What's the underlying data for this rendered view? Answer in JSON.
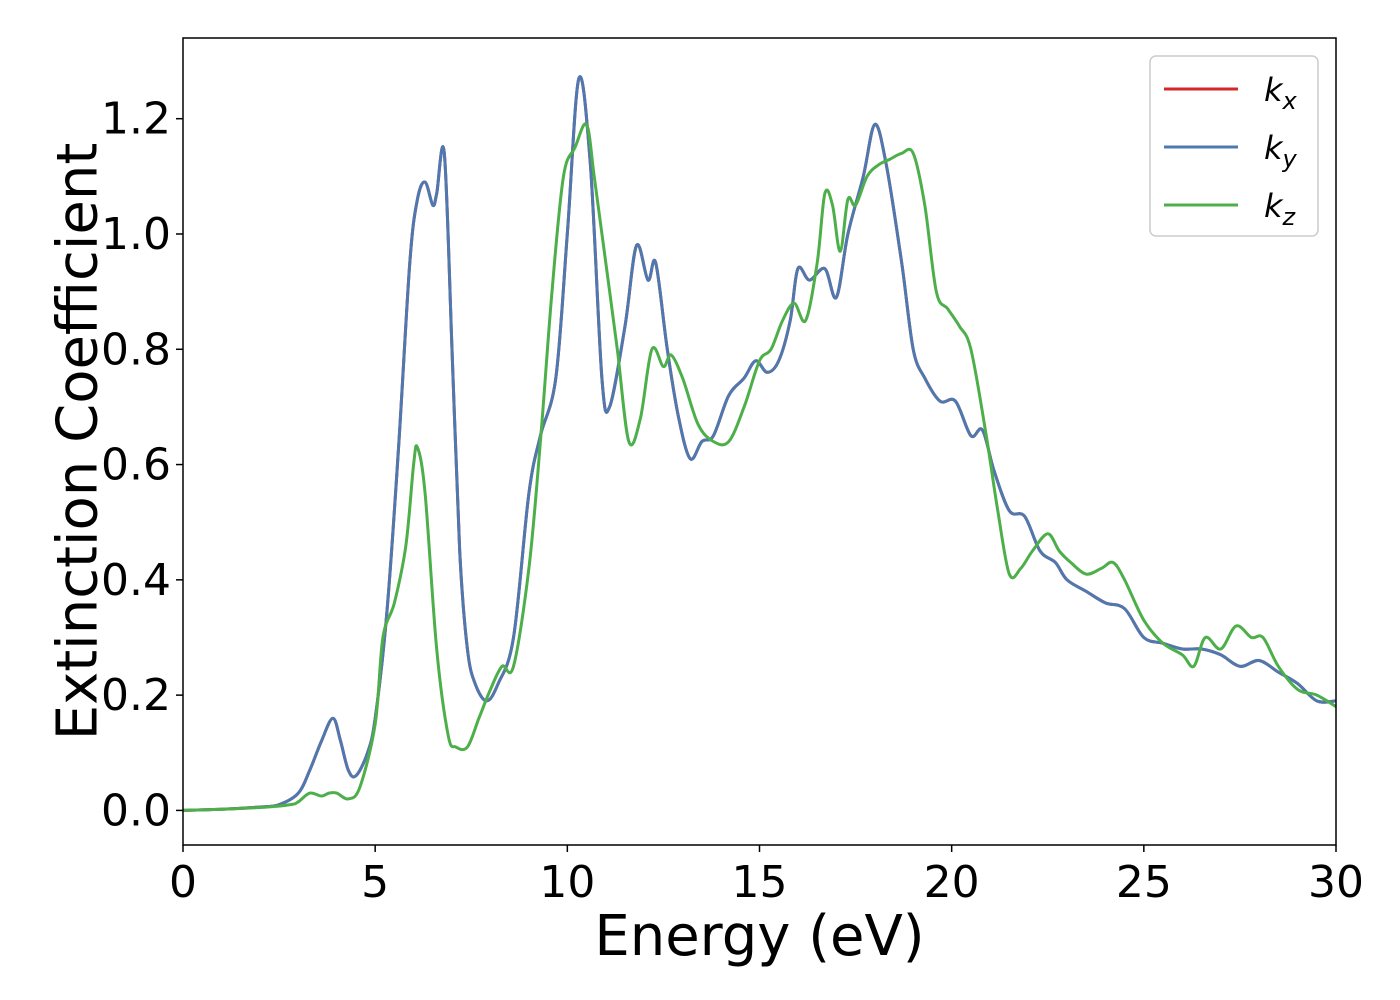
{
  "chart_data": {
    "type": "line",
    "title": "",
    "xlabel": "Energy (eV)",
    "ylabel": "Extinction Coefficient",
    "xlim": [
      0,
      30
    ],
    "ylim": [
      -0.06,
      1.34
    ],
    "xticks": [
      0,
      5,
      10,
      15,
      20,
      25,
      30
    ],
    "yticks": [
      0.0,
      0.2,
      0.4,
      0.6,
      0.8,
      1.0,
      1.2
    ],
    "grid": false,
    "legend_position": "top-right",
    "series": [
      {
        "name": "k",
        "subscript": "x",
        "color": "#d62728",
        "x": [
          0,
          1,
          2,
          2.5,
          3,
          3.3,
          3.6,
          3.9,
          4.1,
          4.3,
          4.5,
          4.8,
          5.0,
          5.3,
          5.6,
          5.9,
          6.1,
          6.3,
          6.5,
          6.6,
          6.8,
          7.0,
          7.2,
          7.4,
          7.6,
          7.9,
          8.2,
          8.6,
          9.0,
          9.3,
          9.7,
          10.0,
          10.3,
          10.6,
          10.9,
          11.1,
          11.5,
          11.8,
          12.1,
          12.3,
          12.6,
          12.9,
          13.2,
          13.5,
          13.8,
          14.2,
          14.6,
          14.9,
          15.2,
          15.5,
          15.8,
          16.0,
          16.3,
          16.7,
          17.0,
          17.3,
          17.7,
          18.0,
          18.3,
          18.7,
          19.0,
          19.3,
          19.7,
          20.1,
          20.5,
          20.8,
          21.1,
          21.5,
          21.9,
          22.3,
          22.7,
          23.0,
          23.5,
          24.0,
          24.5,
          25.0,
          25.5,
          26.0,
          26.5,
          27.0,
          27.5,
          28.0,
          28.5,
          29.0,
          29.5,
          30.0
        ],
        "y": [
          0,
          0.002,
          0.006,
          0.01,
          0.03,
          0.07,
          0.12,
          0.16,
          0.12,
          0.07,
          0.06,
          0.1,
          0.16,
          0.34,
          0.62,
          0.95,
          1.06,
          1.09,
          1.05,
          1.07,
          1.14,
          0.8,
          0.45,
          0.28,
          0.22,
          0.19,
          0.22,
          0.3,
          0.55,
          0.65,
          0.75,
          1.0,
          1.27,
          1.12,
          0.75,
          0.7,
          0.84,
          0.98,
          0.92,
          0.95,
          0.8,
          0.68,
          0.61,
          0.64,
          0.65,
          0.72,
          0.75,
          0.78,
          0.76,
          0.78,
          0.85,
          0.94,
          0.92,
          0.94,
          0.89,
          1.0,
          1.1,
          1.19,
          1.12,
          0.95,
          0.8,
          0.75,
          0.71,
          0.71,
          0.65,
          0.66,
          0.59,
          0.52,
          0.51,
          0.45,
          0.43,
          0.4,
          0.38,
          0.36,
          0.35,
          0.3,
          0.29,
          0.28,
          0.28,
          0.27,
          0.25,
          0.26,
          0.24,
          0.22,
          0.19,
          0.19
        ]
      },
      {
        "name": "k",
        "subscript": "y",
        "color": "#4e79b0",
        "x": [
          0,
          1,
          2,
          2.5,
          3,
          3.3,
          3.6,
          3.9,
          4.1,
          4.3,
          4.5,
          4.8,
          5.0,
          5.3,
          5.6,
          5.9,
          6.1,
          6.3,
          6.5,
          6.6,
          6.8,
          7.0,
          7.2,
          7.4,
          7.6,
          7.9,
          8.2,
          8.6,
          9.0,
          9.3,
          9.7,
          10.0,
          10.3,
          10.6,
          10.9,
          11.1,
          11.5,
          11.8,
          12.1,
          12.3,
          12.6,
          12.9,
          13.2,
          13.5,
          13.8,
          14.2,
          14.6,
          14.9,
          15.2,
          15.5,
          15.8,
          16.0,
          16.3,
          16.7,
          17.0,
          17.3,
          17.7,
          18.0,
          18.3,
          18.7,
          19.0,
          19.3,
          19.7,
          20.1,
          20.5,
          20.8,
          21.1,
          21.5,
          21.9,
          22.3,
          22.7,
          23.0,
          23.5,
          24.0,
          24.5,
          25.0,
          25.5,
          26.0,
          26.5,
          27.0,
          27.5,
          28.0,
          28.5,
          29.0,
          29.5,
          30.0
        ],
        "y": [
          0,
          0.002,
          0.006,
          0.01,
          0.03,
          0.07,
          0.12,
          0.16,
          0.12,
          0.07,
          0.06,
          0.1,
          0.16,
          0.34,
          0.62,
          0.95,
          1.06,
          1.09,
          1.05,
          1.07,
          1.14,
          0.8,
          0.45,
          0.28,
          0.22,
          0.19,
          0.22,
          0.3,
          0.55,
          0.65,
          0.75,
          1.0,
          1.27,
          1.12,
          0.75,
          0.7,
          0.84,
          0.98,
          0.92,
          0.95,
          0.8,
          0.68,
          0.61,
          0.64,
          0.65,
          0.72,
          0.75,
          0.78,
          0.76,
          0.78,
          0.85,
          0.94,
          0.92,
          0.94,
          0.89,
          1.0,
          1.1,
          1.19,
          1.12,
          0.95,
          0.8,
          0.75,
          0.71,
          0.71,
          0.65,
          0.66,
          0.59,
          0.52,
          0.51,
          0.45,
          0.43,
          0.4,
          0.38,
          0.36,
          0.35,
          0.3,
          0.29,
          0.28,
          0.28,
          0.27,
          0.25,
          0.26,
          0.24,
          0.22,
          0.19,
          0.19
        ]
      },
      {
        "name": "k",
        "subscript": "z",
        "color": "#4daf4a",
        "x": [
          0,
          1,
          2,
          2.8,
          3.0,
          3.3,
          3.6,
          3.8,
          4.0,
          4.3,
          4.6,
          5.0,
          5.2,
          5.5,
          5.8,
          6.0,
          6.1,
          6.3,
          6.6,
          6.9,
          7.1,
          7.4,
          7.7,
          8.0,
          8.3,
          8.6,
          9.0,
          9.3,
          9.6,
          9.9,
          10.2,
          10.5,
          10.7,
          11.0,
          11.3,
          11.6,
          11.9,
          12.2,
          12.5,
          12.7,
          13.0,
          13.4,
          13.8,
          14.2,
          14.6,
          15.0,
          15.3,
          15.6,
          15.9,
          16.2,
          16.5,
          16.7,
          16.9,
          17.1,
          17.3,
          17.5,
          17.8,
          18.1,
          18.4,
          18.7,
          19.0,
          19.3,
          19.6,
          19.9,
          20.2,
          20.5,
          20.9,
          21.2,
          21.5,
          21.8,
          22.1,
          22.5,
          22.8,
          23.1,
          23.5,
          23.9,
          24.2,
          24.5,
          25.0,
          25.5,
          26.0,
          26.3,
          26.6,
          27.0,
          27.4,
          27.8,
          28.1,
          28.5,
          29.0,
          29.5,
          30.0
        ],
        "y": [
          0,
          0.002,
          0.005,
          0.01,
          0.015,
          0.03,
          0.025,
          0.03,
          0.03,
          0.02,
          0.04,
          0.15,
          0.3,
          0.36,
          0.46,
          0.6,
          0.63,
          0.55,
          0.28,
          0.13,
          0.11,
          0.11,
          0.16,
          0.21,
          0.25,
          0.25,
          0.42,
          0.64,
          0.9,
          1.1,
          1.15,
          1.19,
          1.1,
          0.95,
          0.8,
          0.64,
          0.68,
          0.8,
          0.77,
          0.79,
          0.75,
          0.67,
          0.64,
          0.64,
          0.7,
          0.78,
          0.8,
          0.85,
          0.88,
          0.85,
          0.95,
          1.07,
          1.05,
          0.97,
          1.06,
          1.05,
          1.1,
          1.12,
          1.13,
          1.14,
          1.14,
          1.05,
          0.9,
          0.87,
          0.84,
          0.8,
          0.65,
          0.52,
          0.41,
          0.42,
          0.45,
          0.48,
          0.45,
          0.43,
          0.41,
          0.42,
          0.43,
          0.4,
          0.33,
          0.29,
          0.27,
          0.25,
          0.3,
          0.28,
          0.32,
          0.3,
          0.3,
          0.25,
          0.21,
          0.2,
          0.18
        ]
      }
    ]
  }
}
